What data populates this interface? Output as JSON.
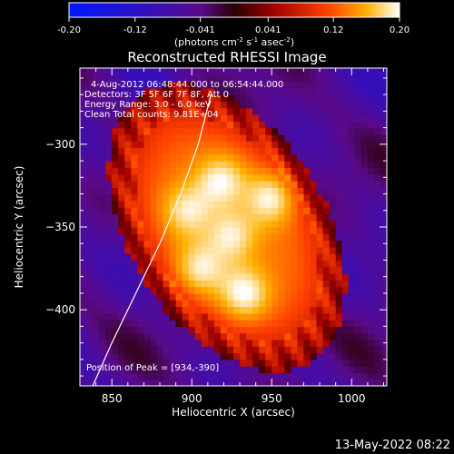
{
  "chart_data": {
    "type": "heatmap",
    "title": "Reconstructed RHESSI Image",
    "xlabel": "Heliocentric X (arcsec)",
    "ylabel": "Heliocentric Y (arcsec)",
    "xlim": [
      830,
      1022
    ],
    "ylim": [
      -446,
      -254
    ],
    "x_ticks": [
      850,
      900,
      950,
      1000
    ],
    "y_ticks": [
      -300,
      -350,
      -400
    ],
    "colorbar": {
      "label_parts": [
        "(photons cm",
        "-2",
        " s",
        "-1",
        " asec",
        "-2",
        ")"
      ],
      "range": [
        -0.2,
        0.2
      ],
      "tick_values": [
        -0.2,
        -0.12,
        -0.041,
        0.041,
        0.12,
        0.2
      ],
      "tick_labels": [
        "-0.20",
        "-0.12",
        "-0.041",
        "0.041",
        "0.12",
        "0.20"
      ]
    },
    "info_lines": [
      "4-Aug-2012 06:48:44.000 to 06:54:44.000",
      "Detectors: 3F 5F 6F 7F 8F, Att 0",
      "Energy Range: 3.0 - 6.0 keV",
      "Clean    Total counts: 9.81E+04"
    ],
    "peak_label": "Position of Peak = [934,-390]",
    "peak": [
      934,
      -390
    ],
    "source": {
      "center": [
        922,
        -350
      ],
      "blobs": [
        {
          "x": 950,
          "y": -332,
          "v": 0.19
        },
        {
          "x": 933,
          "y": -390,
          "v": 0.2
        },
        {
          "x": 918,
          "y": -322,
          "v": 0.18
        },
        {
          "x": 897,
          "y": -340,
          "v": 0.16
        },
        {
          "x": 905,
          "y": -375,
          "v": 0.17
        },
        {
          "x": 925,
          "y": -355,
          "v": 0.16
        }
      ]
    },
    "limb_curve": [
      [
        838,
        -446
      ],
      [
        850,
        -420
      ],
      [
        865,
        -390
      ],
      [
        880,
        -360
      ],
      [
        893,
        -330
      ],
      [
        904,
        -300
      ],
      [
        912,
        -270
      ]
    ]
  },
  "timestamp": "13-May-2022 08:22"
}
